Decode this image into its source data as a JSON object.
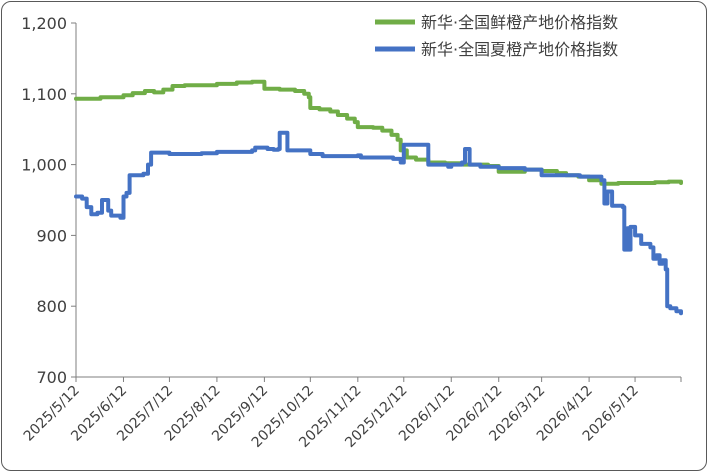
{
  "chart_data": {
    "type": "line",
    "xlabel": "",
    "ylabel": "",
    "ylim": [
      700,
      1200
    ],
    "yticks": [
      700,
      800,
      900,
      1000,
      1100,
      1200
    ],
    "ytick_labels": [
      "700",
      "800",
      "900",
      "1,000",
      "1,100",
      "1,200"
    ],
    "xlim": [
      "2025-05-12",
      "2026-06-11"
    ],
    "x_tick_labels": [
      "2025/5/12",
      "2025/6/12",
      "2025/7/12",
      "2025/8/12",
      "2025/9/12",
      "2025/10/12",
      "2025/11/12",
      "2025/12/12",
      "2026/1/12",
      "2026/2/12",
      "2026/3/12",
      "2026/4/12",
      "2026/5/12"
    ],
    "x_tick_dates": [
      "2025-05-12",
      "2025-06-12",
      "2025-07-12",
      "2025-08-12",
      "2025-09-12",
      "2025-10-12",
      "2025-11-12",
      "2025-12-12",
      "2026-01-12",
      "2026-02-12",
      "2026-03-12",
      "2026-04-12",
      "2026-05-12"
    ],
    "grid": false,
    "legend_position": "top-right",
    "series": [
      {
        "name": "新华·全国鲜橙产地价格指数",
        "color": "#70ad47",
        "points": [
          [
            "2025-05-12",
            1093
          ],
          [
            "2025-05-25",
            1093
          ],
          [
            "2025-05-28",
            1095
          ],
          [
            "2025-06-08",
            1095
          ],
          [
            "2025-06-12",
            1098
          ],
          [
            "2025-06-18",
            1101
          ],
          [
            "2025-06-26",
            1104
          ],
          [
            "2025-07-02",
            1102
          ],
          [
            "2025-07-08",
            1106
          ],
          [
            "2025-07-14",
            1111
          ],
          [
            "2025-07-22",
            1112
          ],
          [
            "2025-08-02",
            1112
          ],
          [
            "2025-08-12",
            1114
          ],
          [
            "2025-08-25",
            1116
          ],
          [
            "2025-09-04",
            1117
          ],
          [
            "2025-09-10",
            1117
          ],
          [
            "2025-09-12",
            1107
          ],
          [
            "2025-09-22",
            1106
          ],
          [
            "2025-10-02",
            1104
          ],
          [
            "2025-10-08",
            1100
          ],
          [
            "2025-10-11",
            1095
          ],
          [
            "2025-10-12",
            1080
          ],
          [
            "2025-10-18",
            1078
          ],
          [
            "2025-10-25",
            1075
          ],
          [
            "2025-10-30",
            1070
          ],
          [
            "2025-11-05",
            1065
          ],
          [
            "2025-11-10",
            1060
          ],
          [
            "2025-11-12",
            1053
          ],
          [
            "2025-11-22",
            1052
          ],
          [
            "2025-11-28",
            1048
          ],
          [
            "2025-12-04",
            1042
          ],
          [
            "2025-12-08",
            1035
          ],
          [
            "2025-12-10",
            1020
          ],
          [
            "2025-12-14",
            1010
          ],
          [
            "2025-12-20",
            1007
          ],
          [
            "2025-12-28",
            1003
          ],
          [
            "2026-01-08",
            1002
          ],
          [
            "2026-01-20",
            1000
          ],
          [
            "2026-02-05",
            998
          ],
          [
            "2026-02-12",
            990
          ],
          [
            "2026-02-25",
            990
          ],
          [
            "2026-03-01",
            993
          ],
          [
            "2026-03-12",
            991
          ],
          [
            "2026-03-22",
            988
          ],
          [
            "2026-03-28",
            985
          ],
          [
            "2026-04-05",
            983
          ],
          [
            "2026-04-12",
            978
          ],
          [
            "2026-04-20",
            973
          ],
          [
            "2026-05-01",
            974
          ],
          [
            "2026-05-12",
            974
          ],
          [
            "2026-05-25",
            975
          ],
          [
            "2026-06-03",
            976
          ],
          [
            "2026-06-11",
            974
          ]
        ]
      },
      {
        "name": "新华·全国夏橙产地价格指数",
        "color": "#4472c4",
        "points": [
          [
            "2025-05-12",
            955
          ],
          [
            "2025-05-16",
            952
          ],
          [
            "2025-05-19",
            940
          ],
          [
            "2025-05-22",
            930
          ],
          [
            "2025-05-26",
            932
          ],
          [
            "2025-05-29",
            950
          ],
          [
            "2025-06-02",
            935
          ],
          [
            "2025-06-04",
            928
          ],
          [
            "2025-06-10",
            925
          ],
          [
            "2025-06-12",
            955
          ],
          [
            "2025-06-14",
            960
          ],
          [
            "2025-06-16",
            985
          ],
          [
            "2025-06-22",
            985
          ],
          [
            "2025-06-25",
            987
          ],
          [
            "2025-06-28",
            1000
          ],
          [
            "2025-06-30",
            1017
          ],
          [
            "2025-07-06",
            1017
          ],
          [
            "2025-07-12",
            1015
          ],
          [
            "2025-08-02",
            1016
          ],
          [
            "2025-08-12",
            1018
          ],
          [
            "2025-09-04",
            1020
          ],
          [
            "2025-09-06",
            1024
          ],
          [
            "2025-09-14",
            1022
          ],
          [
            "2025-09-18",
            1021
          ],
          [
            "2025-09-21",
            1022
          ],
          [
            "2025-09-22",
            1045
          ],
          [
            "2025-09-26",
            1045
          ],
          [
            "2025-09-27",
            1020
          ],
          [
            "2025-10-12",
            1015
          ],
          [
            "2025-10-20",
            1012
          ],
          [
            "2025-11-12",
            1013
          ],
          [
            "2025-11-14",
            1010
          ],
          [
            "2025-12-05",
            1008
          ],
          [
            "2025-12-10",
            1003
          ],
          [
            "2025-12-12",
            1028
          ],
          [
            "2025-12-27",
            1028
          ],
          [
            "2025-12-28",
            1000
          ],
          [
            "2026-01-10",
            997
          ],
          [
            "2026-01-12",
            1000
          ],
          [
            "2026-01-19",
            1003
          ],
          [
            "2026-01-21",
            1022
          ],
          [
            "2026-01-24",
            1000
          ],
          [
            "2026-01-31",
            997
          ],
          [
            "2026-02-12",
            995
          ],
          [
            "2026-03-01",
            993
          ],
          [
            "2026-03-12",
            985
          ],
          [
            "2026-04-02",
            985
          ],
          [
            "2026-04-06",
            983
          ],
          [
            "2026-04-12",
            983
          ],
          [
            "2026-04-20",
            978
          ],
          [
            "2026-04-22",
            945
          ],
          [
            "2026-04-24",
            962
          ],
          [
            "2026-04-27",
            942
          ],
          [
            "2026-05-04",
            940
          ],
          [
            "2026-05-05",
            880
          ],
          [
            "2026-05-07",
            910
          ],
          [
            "2026-05-08",
            880
          ],
          [
            "2026-05-09",
            912
          ],
          [
            "2026-05-12",
            900
          ],
          [
            "2026-05-16",
            888
          ],
          [
            "2026-05-22",
            883
          ],
          [
            "2026-05-24",
            867
          ],
          [
            "2026-05-26",
            872
          ],
          [
            "2026-05-28",
            860
          ],
          [
            "2026-05-30",
            865
          ],
          [
            "2026-06-01",
            852
          ],
          [
            "2026-06-02",
            800
          ],
          [
            "2026-06-04",
            797
          ],
          [
            "2026-06-08",
            793
          ],
          [
            "2026-06-11",
            790
          ]
        ]
      }
    ]
  }
}
